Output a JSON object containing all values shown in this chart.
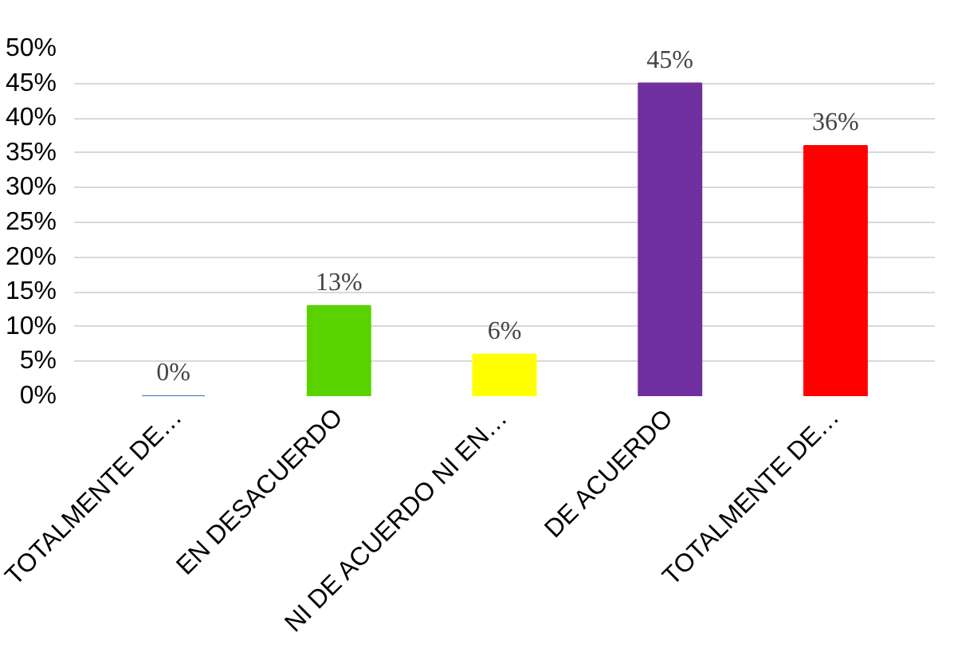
{
  "chart_data": {
    "type": "bar",
    "categories": [
      "TOTALMENTE DE…",
      "EN DESACUERDO",
      "NI DE ACUERDO NI EN…",
      "DE ACUERDO",
      "TOTALMENTE DE…"
    ],
    "values": [
      0,
      13,
      6,
      45,
      36
    ],
    "colors": [
      "#3f6fa8",
      "#5ad200",
      "#ffff00",
      "#7030a0",
      "#ff0000"
    ],
    "value_labels": [
      "0%",
      "13%",
      "6%",
      "45%",
      "36%"
    ],
    "ylim": [
      0,
      50
    ],
    "yticks": [
      {
        "value": 0,
        "label": "0%"
      },
      {
        "value": 5,
        "label": "5%"
      },
      {
        "value": 10,
        "label": "10%"
      },
      {
        "value": 15,
        "label": "15%"
      },
      {
        "value": 20,
        "label": "20%"
      },
      {
        "value": 25,
        "label": "25%"
      },
      {
        "value": 30,
        "label": "30%"
      },
      {
        "value": 35,
        "label": "35%"
      },
      {
        "value": 40,
        "label": "40%"
      },
      {
        "value": 45,
        "label": "45%"
      },
      {
        "value": 50,
        "label": "50%"
      }
    ],
    "grid": "y"
  }
}
